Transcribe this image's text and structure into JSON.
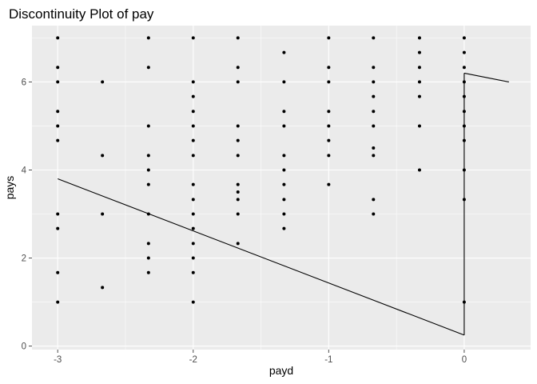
{
  "chart_data": {
    "type": "scatter",
    "title": "Discontinuity Plot of pay",
    "xlabel": "payd",
    "ylabel": "pays",
    "xlim": [
      -3.19,
      0.49
    ],
    "ylim": [
      -0.08,
      7.28
    ],
    "x_ticks": [
      -3,
      -2,
      -1,
      0
    ],
    "y_ticks": [
      0,
      2,
      4,
      6
    ],
    "grid": true,
    "legend": "none",
    "colors": {
      "panel": "#ebebeb",
      "grid": "#ffffff",
      "point": "#000000",
      "line": "#000000",
      "tick": "#4d4d4d"
    },
    "points": [
      [
        -3,
        7
      ],
      [
        -3,
        6.33
      ],
      [
        -3,
        6
      ],
      [
        -3,
        5.33
      ],
      [
        -3,
        5
      ],
      [
        -3,
        4.67
      ],
      [
        -3,
        3
      ],
      [
        -3,
        2.67
      ],
      [
        -3,
        1.67
      ],
      [
        -3,
        1
      ],
      [
        -2.67,
        6
      ],
      [
        -2.67,
        4.33
      ],
      [
        -2.67,
        3
      ],
      [
        -2.67,
        1.33
      ],
      [
        -2.33,
        7
      ],
      [
        -2.33,
        6.33
      ],
      [
        -2.33,
        5
      ],
      [
        -2.33,
        4.33
      ],
      [
        -2.33,
        4
      ],
      [
        -2.33,
        3.67
      ],
      [
        -2.33,
        3
      ],
      [
        -2.33,
        2.33
      ],
      [
        -2.33,
        2
      ],
      [
        -2.33,
        1.67
      ],
      [
        -2,
        7
      ],
      [
        -2,
        6
      ],
      [
        -2,
        5.67
      ],
      [
        -2,
        5.33
      ],
      [
        -2,
        5
      ],
      [
        -2,
        4.67
      ],
      [
        -2,
        4.33
      ],
      [
        -2,
        3.67
      ],
      [
        -2,
        3.33
      ],
      [
        -2,
        3
      ],
      [
        -2,
        2.67
      ],
      [
        -2,
        2.33
      ],
      [
        -2,
        2
      ],
      [
        -2,
        1.67
      ],
      [
        -2,
        1
      ],
      [
        -1.67,
        7
      ],
      [
        -1.67,
        6.33
      ],
      [
        -1.67,
        6
      ],
      [
        -1.67,
        5
      ],
      [
        -1.67,
        4.67
      ],
      [
        -1.67,
        4.33
      ],
      [
        -1.67,
        3.67
      ],
      [
        -1.67,
        3.5
      ],
      [
        -1.67,
        3.33
      ],
      [
        -1.67,
        3
      ],
      [
        -1.67,
        2.33
      ],
      [
        -1.33,
        6.67
      ],
      [
        -1.33,
        6
      ],
      [
        -1.33,
        5.33
      ],
      [
        -1.33,
        5
      ],
      [
        -1.33,
        4.33
      ],
      [
        -1.33,
        4
      ],
      [
        -1.33,
        3.67
      ],
      [
        -1.33,
        3.33
      ],
      [
        -1.33,
        3
      ],
      [
        -1.33,
        2.67
      ],
      [
        -1,
        7
      ],
      [
        -1,
        6.33
      ],
      [
        -1,
        6
      ],
      [
        -1,
        5.33
      ],
      [
        -1,
        5
      ],
      [
        -1,
        4.67
      ],
      [
        -1,
        4.33
      ],
      [
        -1,
        3.67
      ],
      [
        -0.67,
        7
      ],
      [
        -0.67,
        6.33
      ],
      [
        -0.67,
        6
      ],
      [
        -0.67,
        5.67
      ],
      [
        -0.67,
        5.33
      ],
      [
        -0.67,
        5
      ],
      [
        -0.67,
        4.5
      ],
      [
        -0.67,
        4.33
      ],
      [
        -0.67,
        3.33
      ],
      [
        -0.67,
        3
      ],
      [
        -0.33,
        7
      ],
      [
        -0.33,
        6.67
      ],
      [
        -0.33,
        6.33
      ],
      [
        -0.33,
        6
      ],
      [
        -0.33,
        5.67
      ],
      [
        -0.33,
        5
      ],
      [
        -0.33,
        4
      ],
      [
        0,
        7
      ],
      [
        0,
        6.67
      ],
      [
        0,
        6.33
      ],
      [
        0,
        6
      ],
      [
        0,
        5.67
      ],
      [
        0,
        5.33
      ],
      [
        0,
        5
      ],
      [
        0,
        4.67
      ],
      [
        0,
        4
      ],
      [
        0,
        3.33
      ],
      [
        0,
        1
      ]
    ],
    "line_segments": [
      {
        "x": [
          -3,
          0
        ],
        "y": [
          3.8,
          0.25
        ]
      },
      {
        "x": [
          0,
          0.33
        ],
        "y": [
          6.2,
          6.0
        ]
      }
    ]
  }
}
